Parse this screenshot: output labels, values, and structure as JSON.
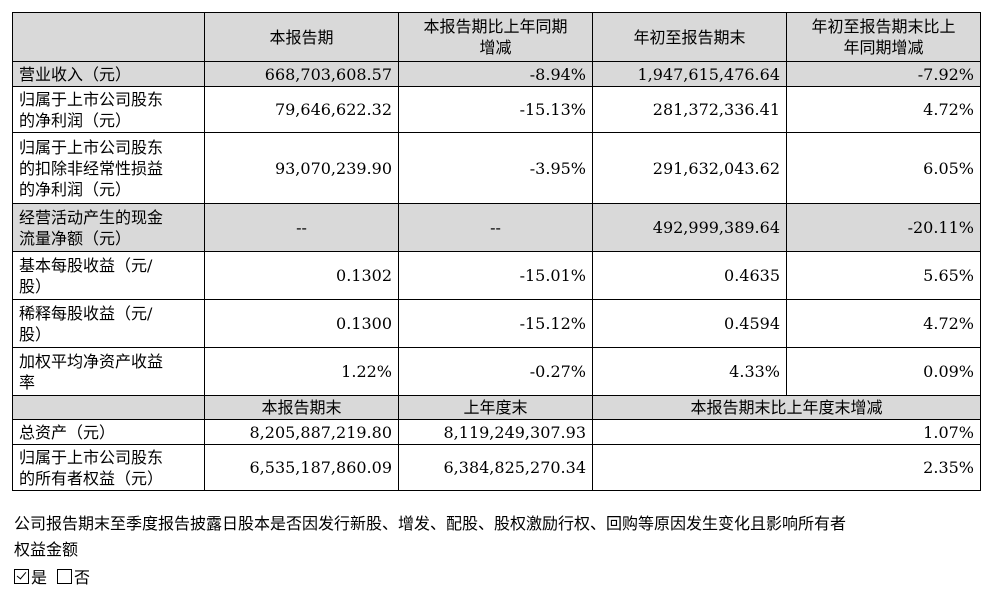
{
  "table": {
    "header": {
      "col1": "本报告期",
      "col2_l1": "本报告期比上年同期",
      "col2_l2": "增减",
      "col3": "年初至报告期末",
      "col4_l1": "年初至报告期末比上",
      "col4_l2": "年同期增减"
    },
    "rows": [
      {
        "l1": "营业收入（元）",
        "v1": "668,703,608.57",
        "v2": "-8.94%",
        "v3": "1,947,615,476.64",
        "v4": "-7.92%"
      },
      {
        "l1": "归属于上市公司股东",
        "l2": "的净利润（元）",
        "v1": "79,646,622.32",
        "v2": "-15.13%",
        "v3": "281,372,336.41",
        "v4": "4.72%"
      },
      {
        "l1": "归属于上市公司股东",
        "l2": "的扣除非经常性损益",
        "l3": "的净利润（元）",
        "v1": "93,070,239.90",
        "v2": "-3.95%",
        "v3": "291,632,043.62",
        "v4": "6.05%"
      },
      {
        "l1": "经营活动产生的现金",
        "l2": "流量净额（元）",
        "v1": "--",
        "v2": "--",
        "v3": "492,999,389.64",
        "v4": "-20.11%"
      },
      {
        "l1": "基本每股收益（元/",
        "l2": "股）",
        "v1": "0.1302",
        "v2": "-15.01%",
        "v3": "0.4635",
        "v4": "5.65%"
      },
      {
        "l1": "稀释每股收益（元/",
        "l2": "股）",
        "v1": "0.1300",
        "v2": "-15.12%",
        "v3": "0.4594",
        "v4": "4.72%"
      },
      {
        "l1": "加权平均净资产收益",
        "l2": "率",
        "v1": "1.22%",
        "v2": "-0.27%",
        "v3": "4.33%",
        "v4": "0.09%"
      }
    ],
    "header2": {
      "col1": "本报告期末",
      "col2": "上年度末",
      "col3": "本报告期末比上年度末增减"
    },
    "rows2": [
      {
        "l1": "总资产（元）",
        "v1": "8,205,887,219.80",
        "v2": "8,119,249,307.93",
        "v3": "1.07%"
      },
      {
        "l1": "归属于上市公司股东",
        "l2": "的所有者权益（元）",
        "v1": "6,535,187,860.09",
        "v2": "6,384,825,270.34",
        "v3": "2.35%"
      }
    ]
  },
  "note": {
    "line1": "公司报告期末至季度报告披露日股本是否因发行新股、增发、配股、股权激励行权、回购等原因发生变化且影响所有者",
    "line2": "权益金额"
  },
  "options": {
    "yes_label": "是",
    "yes_checked": true,
    "no_label": "否",
    "no_checked": false
  }
}
